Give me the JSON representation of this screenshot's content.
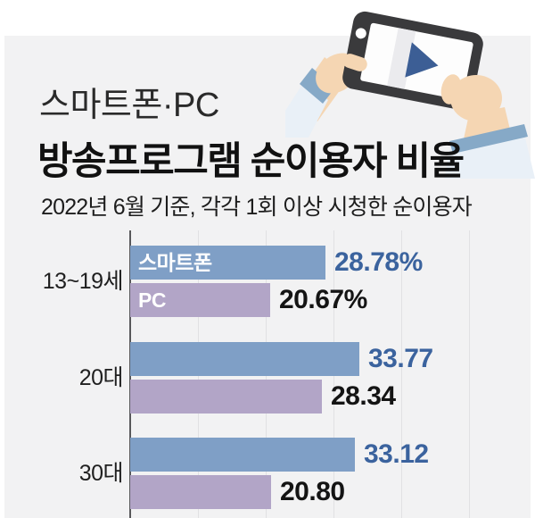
{
  "header": {
    "title_line1": "스마트폰·PC",
    "title_line2": "방송프로그램 순이용자 비율",
    "subtitle": "2022년 6월 기준, 각각 1회 이상 시청한 순이용자"
  },
  "illustration": {
    "description": "hands-holding-tablet-playing-video",
    "icons": [
      "play-icon",
      "camera-dot"
    ]
  },
  "colors": {
    "page_background": "#ffffff",
    "background_panel": "#f2f2f3",
    "smartphone_bar": "#7f9fc6",
    "pc_bar": "#b2a5c7",
    "smartphone_value_text": "#3b639e",
    "pc_value_text": "#141414",
    "bar_label_text": "#ffffff",
    "axis": "#58585a",
    "gridline": "#e1e1e3",
    "title_text": "#111111",
    "device": "#3a3a3c",
    "screen": "#fdfdfd",
    "screen_reflection": "#ebebee",
    "play": "#3c5e95",
    "skin": "#f5d6b3",
    "sleeve": "#e9f0f7",
    "cuff": "#86a9c7"
  },
  "chart_data": {
    "type": "bar",
    "orientation": "horizontal",
    "title": "방송프로그램 순이용자 비율",
    "subtitle": "2022년 6월 기준, 각각 1회 이상 시청한 순이용자",
    "categories": [
      "13~19세",
      "20대",
      "30대"
    ],
    "series": [
      {
        "name": "스마트폰",
        "values": [
          28.78,
          33.77,
          33.12
        ],
        "display_labels": [
          "28.78%",
          "33.77",
          "33.12"
        ]
      },
      {
        "name": "PC",
        "values": [
          20.67,
          28.34,
          20.8
        ],
        "display_labels": [
          "20.67%",
          "28.34",
          "20.80"
        ]
      }
    ],
    "unit": "%",
    "xlim": [
      0,
      50
    ],
    "gridline_interval": 10,
    "grid": true,
    "legend_position": "inside-first-row-bars"
  }
}
